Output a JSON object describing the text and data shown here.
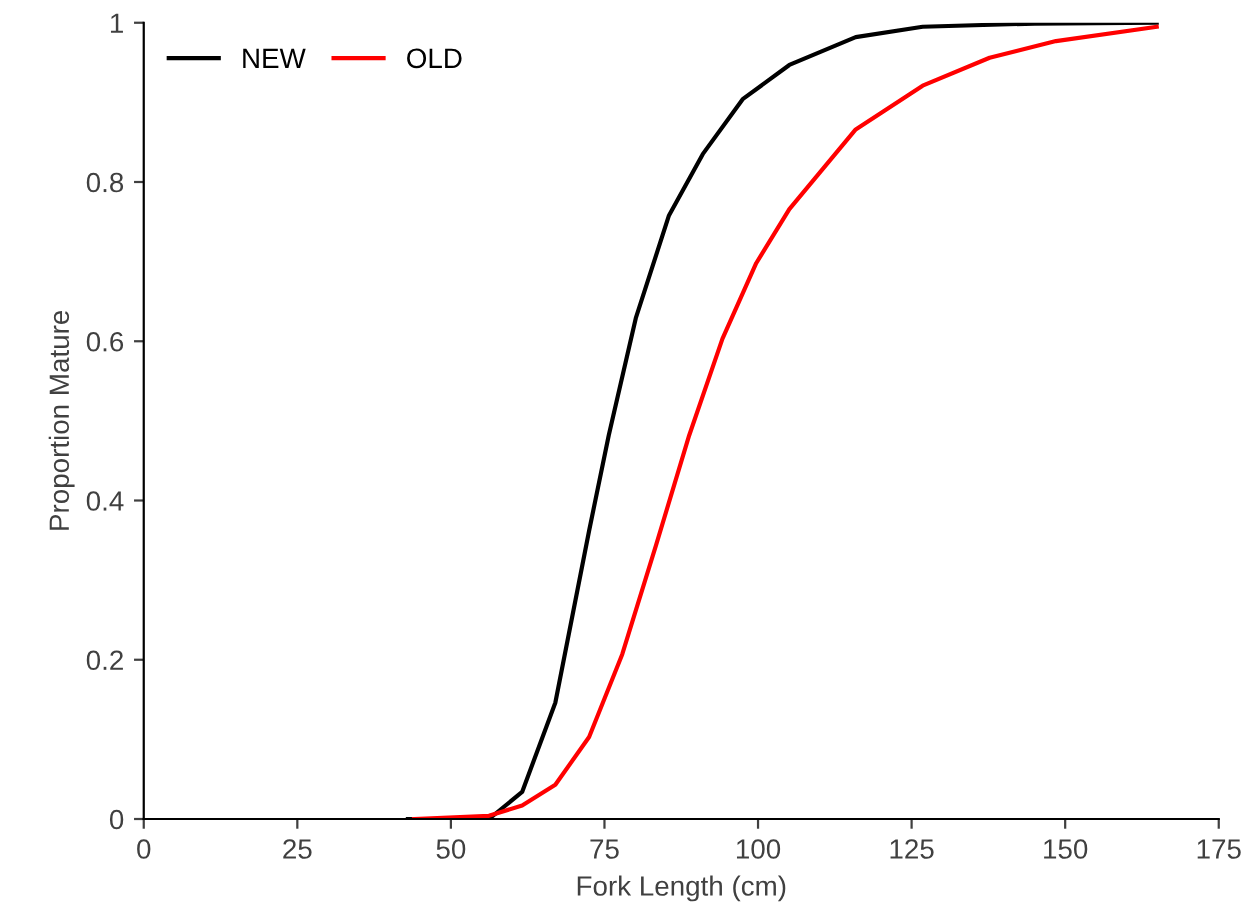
{
  "chart_data": {
    "type": "line",
    "xlabel": "Fork Length (cm)",
    "ylabel": "Proportion Mature",
    "xlim": [
      0,
      175
    ],
    "xticks": [
      0,
      25,
      50,
      75,
      100,
      125,
      150,
      175
    ],
    "ylim": [
      0,
      1
    ],
    "yticks": [
      0,
      0.2,
      0.4,
      0.6,
      0.8,
      1
    ],
    "grid": false,
    "legend": "top left",
    "marker": "none",
    "line_style": "solid",
    "series": [
      {
        "name": "NEW",
        "color": "#000000",
        "x": [
          43,
          56.2,
          61.6,
          67.0,
          72.5,
          75.7,
          80.1,
          85.5,
          91.0,
          97.5,
          105.1,
          115.9,
          126.8,
          145,
          164.9
        ],
        "values": [
          0,
          0,
          0.034,
          0.146,
          0.362,
          0.482,
          0.629,
          0.758,
          0.835,
          0.904,
          0.947,
          0.982,
          0.995,
          0.999,
          1.0
        ]
      },
      {
        "name": "OLD",
        "color": "#ff0000",
        "x": [
          44,
          56.2,
          61.6,
          67.0,
          72.5,
          77.9,
          83.4,
          88.8,
          94.2,
          99.7,
          105.1,
          115.9,
          126.8,
          137.7,
          148.5,
          164.9
        ],
        "values": [
          0,
          0.004,
          0.017,
          0.043,
          0.103,
          0.207,
          0.344,
          0.482,
          0.603,
          0.698,
          0.766,
          0.866,
          0.921,
          0.956,
          0.977,
          0.995
        ]
      }
    ]
  }
}
